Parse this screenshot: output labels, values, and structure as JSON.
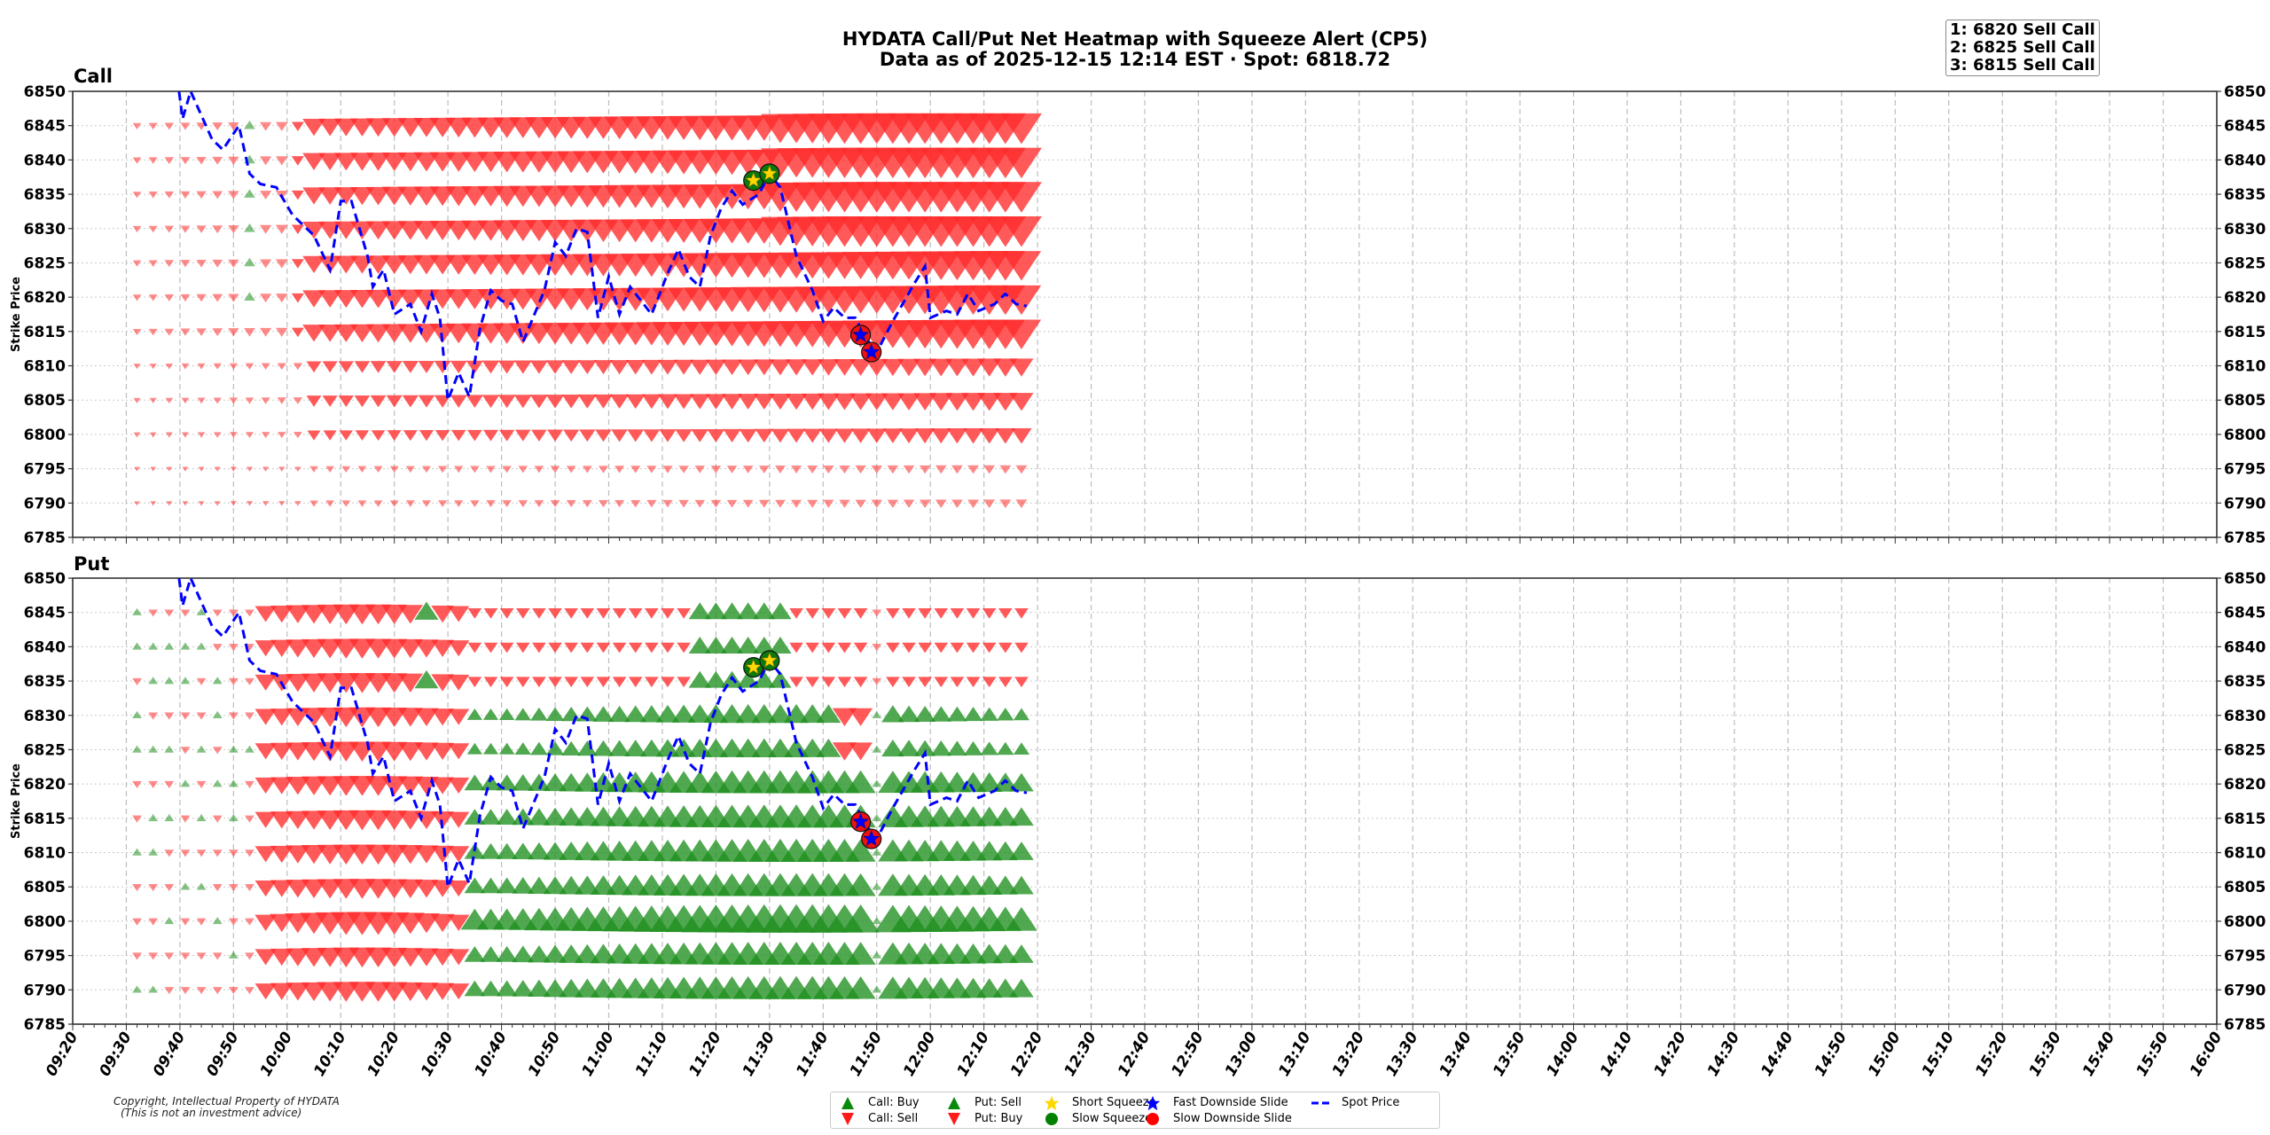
{
  "header": {
    "title_line1": "HYDATA Call/Put Net Heatmap with Squeeze Alert (CP5)",
    "title_line2": "Data as of 2025-12-15 12:14 EST · Spot: 6818.72"
  },
  "top_strikes": [
    "1: 6820 Sell Call",
    "2: 6825 Sell Call",
    "3: 6815 Sell Call"
  ],
  "panels": {
    "call_title": "Call",
    "put_title": "Put",
    "ylabel": "Strike Price"
  },
  "footer": {
    "copyright_line1": "Copyright, Intellectual Property of HYDATA",
    "copyright_line2": "(This is not an investment advice)"
  },
  "legend": {
    "items": [
      {
        "label": "Call: Buy",
        "symbol": "triangle-up",
        "color": "#2e8b2e"
      },
      {
        "label": "Call: Sell",
        "symbol": "triangle-down",
        "color": "#ff2020"
      },
      {
        "label": "Put: Sell",
        "symbol": "triangle-up",
        "color": "#2e8b2e"
      },
      {
        "label": "Put: Buy",
        "symbol": "triangle-down",
        "color": "#ff2020"
      },
      {
        "label": "Short Squeeze",
        "symbol": "star",
        "color": "#ffd700"
      },
      {
        "label": "Slow Squeeze",
        "symbol": "circle",
        "color": "#008000"
      },
      {
        "label": "Fast Downside Slide",
        "symbol": "star",
        "color": "#0000ff"
      },
      {
        "label": "Slow Downside Slide",
        "symbol": "circle",
        "color": "#ff0000"
      },
      {
        "label": "Spot Price",
        "symbol": "dashed-line",
        "color": "#0000ff"
      }
    ]
  },
  "colors": {
    "sell_red": "#ff3b3b",
    "buy_green": "#2e9b2e",
    "spot_blue": "#0000ff",
    "grid": "#b0b0b0"
  },
  "chart_data": {
    "type": "scatter",
    "title": "HYDATA Call/Put Net Heatmap with Squeeze Alert (CP5)",
    "subtitle": "Data as of 2025-12-15 12:14 EST · Spot: 6818.72",
    "xlabel": "",
    "ylabel": "Strike Price",
    "x_ticks": [
      "09:20",
      "09:30",
      "09:40",
      "09:50",
      "10:00",
      "10:10",
      "10:20",
      "10:30",
      "10:40",
      "10:50",
      "11:00",
      "11:10",
      "11:20",
      "11:30",
      "11:40",
      "11:50",
      "12:00",
      "12:10",
      "12:20",
      "12:30",
      "12:40",
      "12:50",
      "13:00",
      "13:10",
      "13:20",
      "13:30",
      "13:40",
      "13:50",
      "14:00",
      "14:10",
      "14:20",
      "14:30",
      "14:40",
      "14:50",
      "15:00",
      "15:10",
      "15:20",
      "15:30",
      "15:40",
      "15:50",
      "16:00"
    ],
    "y_ticks": [
      6850,
      6845,
      6840,
      6835,
      6830,
      6825,
      6820,
      6815,
      6810,
      6805,
      6800,
      6795,
      6790,
      6785
    ],
    "ylim": [
      6785,
      6850
    ],
    "xlim": [
      "09:20",
      "16:00"
    ],
    "grid": true,
    "legend_position": "bottom-center",
    "strikes": [
      6845,
      6840,
      6835,
      6830,
      6825,
      6820,
      6815,
      6810,
      6805,
      6800,
      6795,
      6790
    ],
    "spot_price": {
      "name": "Spot Price",
      "style": "dashed",
      "points": [
        [
          "09:39.5",
          6852
        ],
        [
          "09:40.5",
          6846
        ],
        [
          "09:42",
          6850
        ],
        [
          "09:46",
          6843
        ],
        [
          "09:48",
          6841.5
        ],
        [
          "09:51",
          6845
        ],
        [
          "09:53",
          6838
        ],
        [
          "09:55",
          6836.5
        ],
        [
          "09:58",
          6836
        ],
        [
          "10:01",
          6832
        ],
        [
          "10:05",
          6829
        ],
        [
          "10:08",
          6824
        ],
        [
          "10:10",
          6834
        ],
        [
          "10:12",
          6834
        ],
        [
          "10:15",
          6826
        ],
        [
          "10:16",
          6821.5
        ],
        [
          "10:18",
          6824
        ],
        [
          "10:20",
          6817.5
        ],
        [
          "10:23",
          6819
        ],
        [
          "10:25",
          6815
        ],
        [
          "10:27",
          6820.5
        ],
        [
          "10:28.5",
          6817
        ],
        [
          "10:30",
          6805
        ],
        [
          "10:32",
          6809
        ],
        [
          "10:34",
          6805.5
        ],
        [
          "10:36",
          6815.5
        ],
        [
          "10:38",
          6821
        ],
        [
          "10:40",
          6819.5
        ],
        [
          "10:42",
          6819
        ],
        [
          "10:44",
          6813.5
        ],
        [
          "10:48",
          6821
        ],
        [
          "10:50",
          6828
        ],
        [
          "10:52",
          6826
        ],
        [
          "10:54",
          6830
        ],
        [
          "10:56",
          6829.5
        ],
        [
          "10:58",
          6817
        ],
        [
          "11:00",
          6823
        ],
        [
          "11:02",
          6817.5
        ],
        [
          "11:04",
          6821.5
        ],
        [
          "11:06",
          6819.5
        ],
        [
          "11:08",
          6817.5
        ],
        [
          "11:11",
          6823.5
        ],
        [
          "11:13",
          6827
        ],
        [
          "11:15",
          6823
        ],
        [
          "11:17",
          6821.5
        ],
        [
          "11:19",
          6829
        ],
        [
          "11:21",
          6833
        ],
        [
          "11:23",
          6835.5
        ],
        [
          "11:25",
          6833.5
        ],
        [
          "11:28",
          6835
        ],
        [
          "11:30",
          6838
        ],
        [
          "11:32",
          6836
        ],
        [
          "11:35",
          6826
        ],
        [
          "11:38",
          6821
        ],
        [
          "11:40",
          6816.5
        ],
        [
          "11:42",
          6818.5
        ],
        [
          "11:44",
          6817
        ],
        [
          "11:46",
          6817
        ],
        [
          "11:48",
          6814
        ],
        [
          "11:50",
          6812
        ],
        [
          "11:53",
          6816.5
        ],
        [
          "11:57",
          6822
        ],
        [
          "11:59",
          6824.5
        ],
        [
          "12:00",
          6817
        ],
        [
          "12:03",
          6818
        ],
        [
          "12:05",
          6817.5
        ],
        [
          "12:07",
          6820.5
        ],
        [
          "12:09",
          6818
        ],
        [
          "12:12",
          6819
        ],
        [
          "12:14",
          6820.5
        ],
        [
          "12:16",
          6819
        ],
        [
          "12:18",
          6818.7
        ]
      ]
    },
    "alerts": [
      {
        "type": "Short Squeeze / Slow Squeeze",
        "time": "11:27",
        "price": 6837
      },
      {
        "type": "Short Squeeze / Slow Squeeze",
        "time": "11:30",
        "price": 6838
      },
      {
        "type": "Fast Downside Slide / Slow Downside Slide",
        "time": "11:47",
        "price": 6814.5
      },
      {
        "type": "Fast Downside Slide / Slow Downside Slide",
        "time": "11:49",
        "price": 6812
      }
    ],
    "series": [
      {
        "name": "Call",
        "description": "Net call flow per strike; red down-triangles = Call: Sell, green up-triangles = Call: Buy; marker size = magnitude",
        "time_range": [
          "09:32",
          "12:17"
        ],
        "dominant": "Call: Sell",
        "notes": "Sell pressure grows from ~10:05 onward for strikes 6820-6845; strongest at 6840/6845 after 11:30. Low strikes 6790-6800 show small sells."
      },
      {
        "name": "Put",
        "description": "Net put flow per strike; red down-triangles = Put: Buy, green up-triangles = Put: Sell; marker size = magnitude",
        "time_range": [
          "09:32",
          "12:17"
        ],
        "dominant_before_10:40": "Put: Buy",
        "dominant_after_10:40": "Put: Sell",
        "notes": "Heavy Put: Buy 09:55-10:32 across all strikes; from 10:40 onward heavy Put: Sell at 6790-6830, strongest at 6800."
      }
    ]
  }
}
